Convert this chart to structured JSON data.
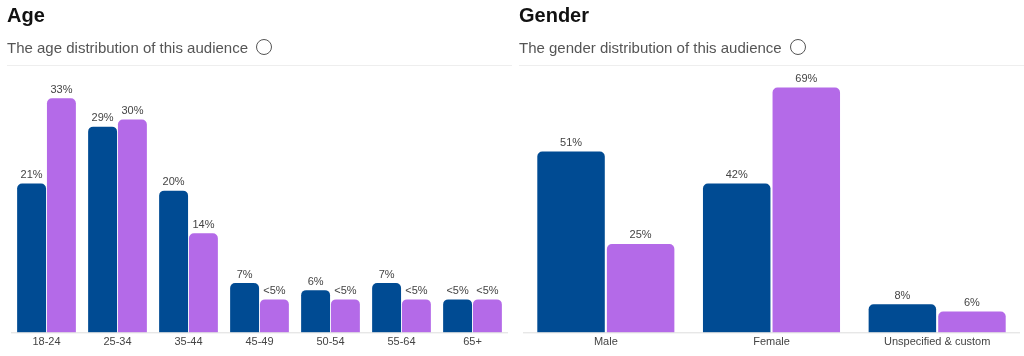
{
  "chart_data": [
    {
      "type": "bar",
      "title": "Age",
      "subtitle": "The age distribution of this audience",
      "categories": [
        "18-24",
        "25-34",
        "35-44",
        "45-49",
        "50-54",
        "55-64",
        "65+"
      ],
      "grid": false,
      "legend": false,
      "series": [
        {
          "color": "#004b93",
          "values": [
            21,
            29,
            20,
            7,
            6,
            7,
            4.7
          ],
          "value_labels": [
            "21%",
            "29%",
            "20%",
            "7%",
            "6%",
            "7%",
            "<5%"
          ]
        },
        {
          "color": "#b46ae8",
          "values": [
            33,
            30,
            14,
            4.7,
            4.7,
            4.7,
            4.7
          ],
          "value_labels": [
            "33%",
            "30%",
            "14%",
            "<5%",
            "<5%",
            "<5%",
            "<5%"
          ]
        }
      ]
    },
    {
      "type": "bar",
      "title": "Gender",
      "subtitle": "The gender distribution of this audience",
      "categories": [
        "Male",
        "Female",
        "Unspecified & custom"
      ],
      "grid": false,
      "legend": false,
      "series": [
        {
          "color": "#004b93",
          "values": [
            51,
            42,
            8
          ],
          "value_labels": [
            "51%",
            "42%",
            "8%"
          ]
        },
        {
          "color": "#b46ae8",
          "values": [
            25,
            69,
            6
          ],
          "value_labels": [
            "25%",
            "69%",
            "6%"
          ]
        }
      ]
    }
  ]
}
